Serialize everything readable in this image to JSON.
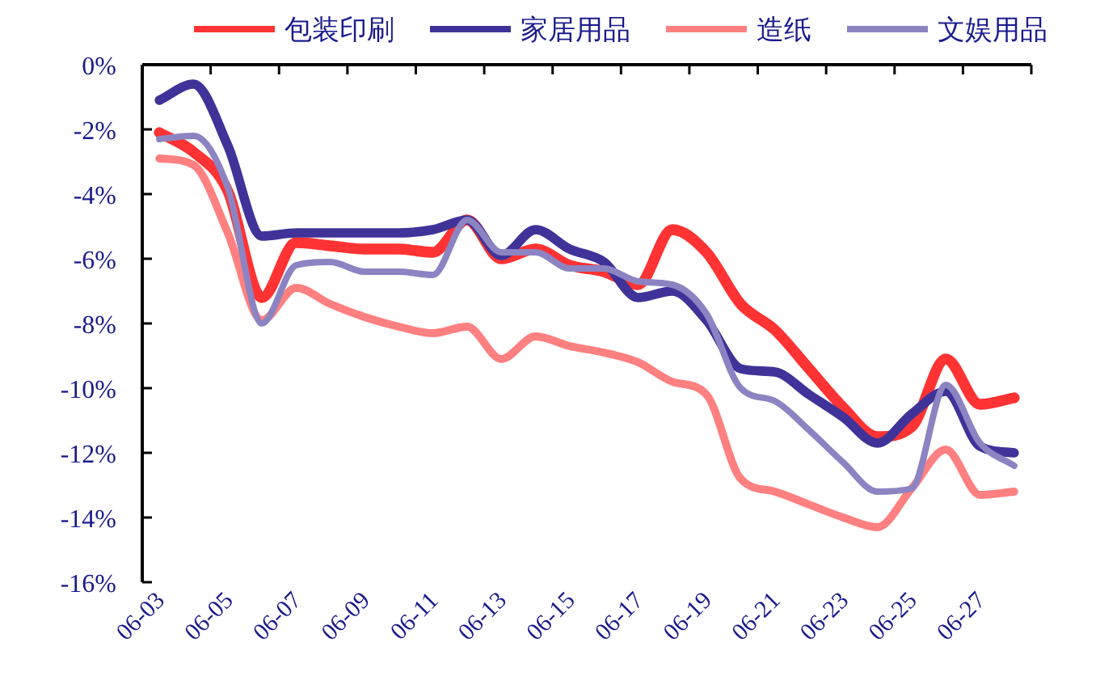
{
  "chart_data": {
    "type": "line",
    "categories": [
      "06-03",
      null,
      "06-05",
      null,
      "06-07",
      null,
      "06-09",
      null,
      "06-11",
      null,
      "06-13",
      null,
      "06-15",
      null,
      "06-17",
      null,
      "06-19",
      null,
      "06-21",
      null,
      "06-23",
      null,
      "06-25",
      null,
      "06-27",
      null
    ],
    "series": [
      {
        "name": "包装印刷",
        "color": "#ff3333",
        "values": [
          -2.1,
          -2.7,
          -3.9,
          -7.2,
          -5.5,
          -5.6,
          -5.7,
          -5.7,
          -5.8,
          -4.8,
          -6.0,
          -5.7,
          -6.2,
          -6.4,
          -6.8,
          -5.1,
          -5.8,
          -7.4,
          -8.2,
          -9.4,
          -10.6,
          -11.5,
          -11.2,
          -9.1,
          -10.5,
          -10.3
        ]
      },
      {
        "name": "家居用品",
        "color": "#3f3399",
        "values": [
          -1.1,
          -0.6,
          -2.5,
          -5.3,
          -5.2,
          -5.2,
          -5.2,
          -5.2,
          -5.1,
          -4.8,
          -5.9,
          -5.1,
          -5.7,
          -6.1,
          -7.2,
          -7.0,
          -7.9,
          -9.4,
          -9.5,
          -10.2,
          -10.9,
          -11.7,
          -10.8,
          -10.1,
          -11.8,
          -12.0
        ]
      },
      {
        "name": "造纸",
        "color": "#ff8080",
        "values": [
          -2.9,
          -3.1,
          -5.2,
          -7.9,
          -6.9,
          -7.4,
          -7.8,
          -8.1,
          -8.3,
          -8.1,
          -9.1,
          -8.4,
          -8.7,
          -8.9,
          -9.2,
          -9.8,
          -10.2,
          -12.8,
          -13.2,
          -13.6,
          -14.0,
          -14.3,
          -13.1,
          -11.9,
          -13.3,
          -13.2
        ]
      },
      {
        "name": "文娱用品",
        "color": "#8c84c2",
        "values": [
          -2.3,
          -2.2,
          -3.8,
          -8.0,
          -6.2,
          -6.1,
          -6.4,
          -6.4,
          -6.5,
          -4.8,
          -5.8,
          -5.8,
          -6.3,
          -6.3,
          -6.7,
          -6.8,
          -7.7,
          -10.0,
          -10.4,
          -11.3,
          -12.3,
          -13.2,
          -13.1,
          -9.9,
          -11.7,
          -12.4
        ]
      }
    ],
    "ylim": [
      -16,
      0
    ],
    "yticks": [
      {
        "value": 0,
        "label": "0%"
      },
      {
        "value": -2,
        "label": "-2%"
      },
      {
        "value": -4,
        "label": "-4%"
      },
      {
        "value": -6,
        "label": "-6%"
      },
      {
        "value": -8,
        "label": "-8%"
      },
      {
        "value": -10,
        "label": "-10%"
      },
      {
        "value": -12,
        "label": "-12%"
      },
      {
        "value": -14,
        "label": "-14%"
      },
      {
        "value": -16,
        "label": "-16%"
      }
    ],
    "legend": "top",
    "marker": "none",
    "line_style": "solid"
  }
}
